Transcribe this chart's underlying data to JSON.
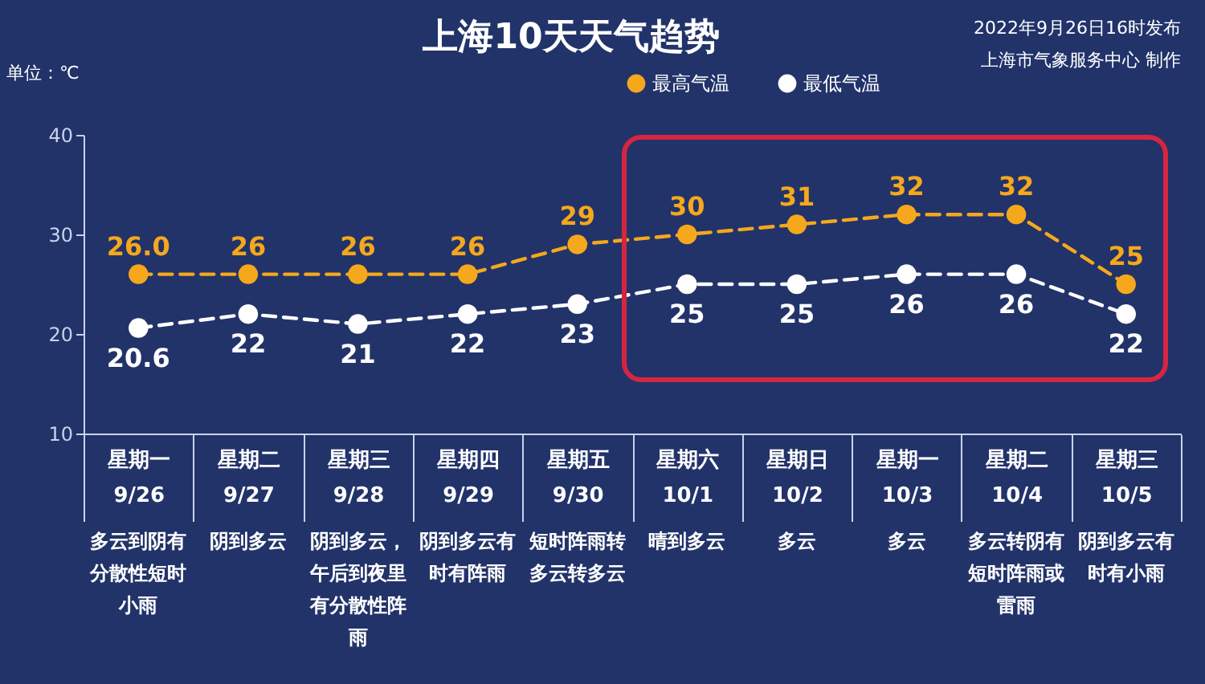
{
  "chart_data": {
    "type": "line",
    "title": "上海10天天气趋势",
    "categories": [
      "星期一\n9/26",
      "星期二\n9/27",
      "星期三\n9/28",
      "星期四\n9/29",
      "星期五\n9/30",
      "星期六\n10/1",
      "星期日\n10/2",
      "星期一\n10/3",
      "星期二\n10/4",
      "星期三\n10/5"
    ],
    "series": [
      {
        "name": "最高气温",
        "color": "#f5a81c",
        "values": [
          26.0,
          26,
          26,
          26,
          29,
          30,
          31,
          32,
          32,
          25
        ],
        "value_labels": [
          "26.0",
          "26",
          "26",
          "26",
          "29",
          "30",
          "31",
          "32",
          "32",
          "25"
        ]
      },
      {
        "name": "最低气温",
        "color": "#ffffff",
        "values": [
          20.6,
          22,
          21,
          22,
          23,
          25,
          25,
          26,
          26,
          22
        ],
        "value_labels": [
          "20.6",
          "22",
          "21",
          "22",
          "23",
          "25",
          "25",
          "26",
          "26",
          "22"
        ]
      }
    ],
    "ylim": [
      10,
      40
    ],
    "yticks": [
      10,
      20,
      30,
      40
    ],
    "marker": "circle",
    "line_style": "dashed",
    "legend": "top right",
    "annotations": [
      "单位：℃",
      "2022年9月26日16时发布",
      "上海市气象服务中心 制作",
      "多云到阴有分散性短时小雨",
      "阴到多云",
      "阴到多云，午后到夜里有分散性阵雨",
      "阴到多云有时有阵雨",
      "短时阵雨转多云转多云",
      "晴到多云",
      "多云",
      "多云",
      "多云转阴有短时阵雨或雷雨",
      "阴到多云有时有小雨"
    ]
  }
}
